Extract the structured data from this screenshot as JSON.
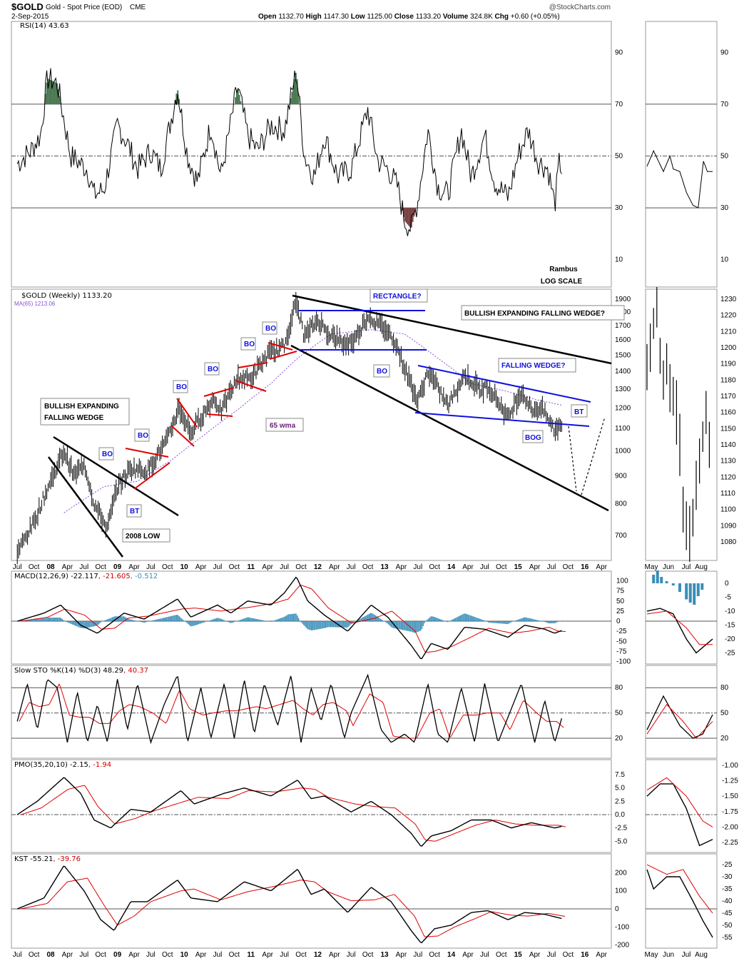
{
  "header": {
    "symbol": "$GOLD",
    "name": "Gold - Spot Price (EOD)",
    "exchange": "CME",
    "date": "2-Sep-2015",
    "copyright": "@StockCharts.com",
    "open_label": "Open",
    "open": "1132.70",
    "high_label": "High",
    "high": "1147.30",
    "low_label": "Low",
    "low": "1125.00",
    "close_label": "Close",
    "close": "1133.20",
    "volume_label": "Volume",
    "volume": "324.8K",
    "chg_label": "Chg",
    "chg": "+0.60 (+0.05%)"
  },
  "panels": {
    "rsi": {
      "label": "RSI(14) 43.63",
      "ticks": [
        90,
        70,
        50,
        30,
        10
      ],
      "note1": "Rambus",
      "note2": "LOG SCALE"
    },
    "price": {
      "label": "$GOLD (Weekly) 1133.20",
      "ma_label": "MA(65) 1213.06",
      "ticks": [
        1900,
        1800,
        1700,
        1600,
        1500,
        1400,
        1300,
        1200,
        1100,
        1000,
        900,
        800,
        700
      ],
      "mini_ticks": [
        1230,
        1220,
        1210,
        1200,
        1190,
        1180,
        1170,
        1160,
        1150,
        1140,
        1130,
        1120,
        1110,
        1100,
        1090,
        1080
      ]
    },
    "macd": {
      "label": "MACD(12,26,9) -22.117",
      "sig": ", -21.605",
      "hist": ", -0.512",
      "ticks": [
        100,
        75,
        50,
        25,
        0,
        -25,
        -50,
        -75,
        -100
      ],
      "mini_ticks": [
        0,
        -5,
        -10,
        -15,
        -20,
        -25
      ]
    },
    "sto": {
      "label": "Slow STO %K(14) %D(3) 48.29",
      "d": ", 40.37",
      "ticks": [
        80,
        50,
        20
      ]
    },
    "pmo": {
      "label": "PMO(35,20,10) -2.15",
      "sig": ", -1.94",
      "ticks": [
        "7.5",
        "5.0",
        "2.5",
        "0.0",
        "-2.5",
        "-5.0"
      ],
      "mini_ticks": [
        "-1.00",
        "-1.25",
        "-1.50",
        "-1.75",
        "-2.00",
        "-2.25"
      ]
    },
    "kst": {
      "label": "KST -55.21",
      "sig": ", -39.76",
      "ticks": [
        200,
        100,
        0,
        -100,
        -200
      ],
      "mini_ticks": [
        -25,
        -30,
        -35,
        -40,
        -45,
        -50,
        -55
      ]
    }
  },
  "annotations": {
    "wedge1": "BULLISH EXPANDING",
    "wedge2": "FALLING WEDGE",
    "low2008": "2008 LOW",
    "wma": "65 wma",
    "rect": "RECTANGLE?",
    "bewedge": "BULLISH EXPANDING FALLING WEDGE?",
    "fwedge": "FALLING WEDGE?",
    "bo": "BO",
    "bt": "BT",
    "bog": "BOG"
  },
  "colors": {
    "price": "#000000",
    "ma": "#8a4fd8",
    "signal": "#e00000",
    "hist": "#3a8db8",
    "trend": "#000000",
    "channel": "#1010e0",
    "pattern": "#e00000",
    "rsi_over": "#4d7a55",
    "rsi_under": "#7a4444"
  },
  "chart_data": {
    "type": "line",
    "x_axis_labels": [
      "Jul",
      "Oct",
      "08",
      "Apr",
      "Jul",
      "Oct",
      "09",
      "Apr",
      "Jul",
      "Oct",
      "10",
      "Apr",
      "Jul",
      "Oct",
      "11",
      "Apr",
      "Jul",
      "Oct",
      "12",
      "Apr",
      "Jul",
      "Oct",
      "13",
      "Apr",
      "Jul",
      "Oct",
      "14",
      "Apr",
      "Jul",
      "Oct",
      "15",
      "Apr",
      "Jul",
      "Oct",
      "16",
      "Apr"
    ],
    "mini_x_labels": [
      "May",
      "Jun",
      "Jul",
      "Aug"
    ],
    "price_scale": "log",
    "price_range": [
      620,
      1950
    ],
    "price": [
      [
        2007.5,
        650
      ],
      [
        2007.75,
        740
      ],
      [
        2008.0,
        880
      ],
      [
        2008.2,
        1000
      ],
      [
        2008.35,
        900
      ],
      [
        2008.5,
        950
      ],
      [
        2008.65,
        800
      ],
      [
        2008.85,
        720
      ],
      [
        2009.0,
        860
      ],
      [
        2009.2,
        930
      ],
      [
        2009.45,
        920
      ],
      [
        2009.75,
        1050
      ],
      [
        2009.92,
        1200
      ],
      [
        2010.1,
        1080
      ],
      [
        2010.45,
        1250
      ],
      [
        2010.55,
        1180
      ],
      [
        2010.8,
        1360
      ],
      [
        2011.0,
        1360
      ],
      [
        2011.25,
        1500
      ],
      [
        2011.5,
        1560
      ],
      [
        2011.68,
        1880
      ],
      [
        2011.8,
        1620
      ],
      [
        2012.0,
        1740
      ],
      [
        2012.15,
        1650
      ],
      [
        2012.4,
        1570
      ],
      [
        2012.55,
        1600
      ],
      [
        2012.75,
        1770
      ],
      [
        2013.0,
        1680
      ],
      [
        2013.15,
        1600
      ],
      [
        2013.3,
        1420
      ],
      [
        2013.5,
        1230
      ],
      [
        2013.65,
        1400
      ],
      [
        2013.95,
        1210
      ],
      [
        2014.2,
        1380
      ],
      [
        2014.45,
        1290
      ],
      [
        2014.55,
        1320
      ],
      [
        2014.85,
        1150
      ],
      [
        2015.05,
        1290
      ],
      [
        2015.2,
        1190
      ],
      [
        2015.35,
        1200
      ],
      [
        2015.55,
        1090
      ],
      [
        2015.67,
        1133
      ]
    ],
    "ma65": [
      [
        2008.2,
        770
      ],
      [
        2008.8,
        860
      ],
      [
        2009.3,
        880
      ],
      [
        2009.8,
        960
      ],
      [
        2010.3,
        1070
      ],
      [
        2010.8,
        1190
      ],
      [
        2011.3,
        1330
      ],
      [
        2011.7,
        1480
      ],
      [
        2012.2,
        1640
      ],
      [
        2012.8,
        1670
      ],
      [
        2013.3,
        1640
      ],
      [
        2013.8,
        1480
      ],
      [
        2014.3,
        1330
      ],
      [
        2014.8,
        1290
      ],
      [
        2015.3,
        1240
      ],
      [
        2015.67,
        1213
      ]
    ],
    "rsi": [
      [
        2007.5,
        47
      ],
      [
        2007.7,
        52
      ],
      [
        2007.85,
        58
      ],
      [
        2007.95,
        80
      ],
      [
        2008.1,
        78
      ],
      [
        2008.3,
        50
      ],
      [
        2008.55,
        45
      ],
      [
        2008.65,
        35
      ],
      [
        2008.8,
        37
      ],
      [
        2009.0,
        62
      ],
      [
        2009.15,
        55
      ],
      [
        2009.3,
        45
      ],
      [
        2009.5,
        52
      ],
      [
        2009.65,
        45
      ],
      [
        2009.9,
        76
      ],
      [
        2010.05,
        50
      ],
      [
        2010.2,
        40
      ],
      [
        2010.4,
        62
      ],
      [
        2010.55,
        42
      ],
      [
        2010.8,
        77
      ],
      [
        2010.95,
        58
      ],
      [
        2011.1,
        52
      ],
      [
        2011.3,
        62
      ],
      [
        2011.5,
        60
      ],
      [
        2011.68,
        83
      ],
      [
        2011.8,
        50
      ],
      [
        2011.95,
        42
      ],
      [
        2012.1,
        58
      ],
      [
        2012.3,
        42
      ],
      [
        2012.5,
        45
      ],
      [
        2012.75,
        68
      ],
      [
        2012.9,
        48
      ],
      [
        2013.05,
        45
      ],
      [
        2013.2,
        38
      ],
      [
        2013.3,
        25
      ],
      [
        2013.4,
        22
      ],
      [
        2013.5,
        33
      ],
      [
        2013.65,
        60
      ],
      [
        2013.8,
        38
      ],
      [
        2013.95,
        35
      ],
      [
        2014.15,
        60
      ],
      [
        2014.3,
        42
      ],
      [
        2014.5,
        58
      ],
      [
        2014.65,
        40
      ],
      [
        2014.85,
        34
      ],
      [
        2015.0,
        50
      ],
      [
        2015.15,
        60
      ],
      [
        2015.3,
        48
      ],
      [
        2015.45,
        45
      ],
      [
        2015.55,
        31
      ],
      [
        2015.62,
        48
      ],
      [
        2015.67,
        43.63
      ]
    ],
    "macd": [
      [
        2007.5,
        0
      ],
      [
        2007.9,
        20
      ],
      [
        2008.15,
        40
      ],
      [
        2008.45,
        -10
      ],
      [
        2008.7,
        -30
      ],
      [
        2008.9,
        -5
      ],
      [
        2009.1,
        20
      ],
      [
        2009.4,
        5
      ],
      [
        2009.9,
        55
      ],
      [
        2010.1,
        10
      ],
      [
        2010.5,
        40
      ],
      [
        2010.7,
        20
      ],
      [
        2010.95,
        50
      ],
      [
        2011.3,
        40
      ],
      [
        2011.5,
        70
      ],
      [
        2011.68,
        110
      ],
      [
        2011.85,
        50
      ],
      [
        2012.1,
        15
      ],
      [
        2012.45,
        -25
      ],
      [
        2012.8,
        40
      ],
      [
        2013.05,
        10
      ],
      [
        2013.4,
        -60
      ],
      [
        2013.55,
        -95
      ],
      [
        2013.7,
        -55
      ],
      [
        2013.95,
        -70
      ],
      [
        2014.2,
        -15
      ],
      [
        2014.5,
        -20
      ],
      [
        2014.85,
        -40
      ],
      [
        2015.1,
        -10
      ],
      [
        2015.4,
        -20
      ],
      [
        2015.55,
        -30
      ],
      [
        2015.67,
        -22
      ]
    ],
    "sto": [
      [
        2007.5,
        40
      ],
      [
        2007.65,
        85
      ],
      [
        2007.8,
        30
      ],
      [
        2007.95,
        90
      ],
      [
        2008.1,
        80
      ],
      [
        2008.25,
        15
      ],
      [
        2008.4,
        75
      ],
      [
        2008.55,
        15
      ],
      [
        2008.7,
        60
      ],
      [
        2008.85,
        15
      ],
      [
        2009.0,
        90
      ],
      [
        2009.15,
        30
      ],
      [
        2009.3,
        85
      ],
      [
        2009.5,
        15
      ],
      [
        2009.7,
        60
      ],
      [
        2009.9,
        95
      ],
      [
        2010.05,
        15
      ],
      [
        2010.25,
        80
      ],
      [
        2010.4,
        20
      ],
      [
        2010.6,
        85
      ],
      [
        2010.75,
        20
      ],
      [
        2010.9,
        90
      ],
      [
        2011.05,
        25
      ],
      [
        2011.2,
        85
      ],
      [
        2011.4,
        35
      ],
      [
        2011.6,
        95
      ],
      [
        2011.75,
        15
      ],
      [
        2011.9,
        80
      ],
      [
        2012.05,
        40
      ],
      [
        2012.2,
        85
      ],
      [
        2012.4,
        20
      ],
      [
        2012.5,
        50
      ],
      [
        2012.75,
        95
      ],
      [
        2012.95,
        30
      ],
      [
        2013.1,
        15
      ],
      [
        2013.3,
        25
      ],
      [
        2013.45,
        15
      ],
      [
        2013.65,
        85
      ],
      [
        2013.8,
        25
      ],
      [
        2013.95,
        15
      ],
      [
        2014.15,
        80
      ],
      [
        2014.35,
        15
      ],
      [
        2014.5,
        85
      ],
      [
        2014.7,
        15
      ],
      [
        2014.85,
        45
      ],
      [
        2015.05,
        85
      ],
      [
        2015.25,
        15
      ],
      [
        2015.4,
        65
      ],
      [
        2015.55,
        15
      ],
      [
        2015.67,
        48
      ]
    ],
    "pmo": [
      [
        2007.5,
        0
      ],
      [
        2007.8,
        2.5
      ],
      [
        2008.2,
        7
      ],
      [
        2008.45,
        4
      ],
      [
        2008.65,
        -1
      ],
      [
        2008.9,
        -2.5
      ],
      [
        2009.2,
        1
      ],
      [
        2009.5,
        0.5
      ],
      [
        2009.95,
        4.5
      ],
      [
        2010.15,
        2
      ],
      [
        2010.6,
        4
      ],
      [
        2010.9,
        5
      ],
      [
        2011.3,
        3.5
      ],
      [
        2011.7,
        6.5
      ],
      [
        2011.9,
        3
      ],
      [
        2012.1,
        3.5
      ],
      [
        2012.5,
        0.5
      ],
      [
        2012.8,
        2.5
      ],
      [
        2013.1,
        0
      ],
      [
        2013.4,
        -3.5
      ],
      [
        2013.55,
        -6
      ],
      [
        2013.7,
        -4
      ],
      [
        2014.0,
        -3
      ],
      [
        2014.3,
        -1
      ],
      [
        2014.6,
        -1
      ],
      [
        2014.9,
        -2.5
      ],
      [
        2015.2,
        -1.5
      ],
      [
        2015.55,
        -2.5
      ],
      [
        2015.67,
        -2.15
      ]
    ],
    "kst": [
      [
        2007.5,
        0
      ],
      [
        2007.9,
        60
      ],
      [
        2008.2,
        240
      ],
      [
        2008.5,
        100
      ],
      [
        2008.75,
        -60
      ],
      [
        2008.95,
        -120
      ],
      [
        2009.2,
        40
      ],
      [
        2009.45,
        40
      ],
      [
        2009.9,
        160
      ],
      [
        2010.1,
        60
      ],
      [
        2010.5,
        40
      ],
      [
        2010.9,
        150
      ],
      [
        2011.3,
        100
      ],
      [
        2011.7,
        220
      ],
      [
        2011.9,
        80
      ],
      [
        2012.1,
        110
      ],
      [
        2012.45,
        -20
      ],
      [
        2012.8,
        120
      ],
      [
        2013.1,
        40
      ],
      [
        2013.4,
        -120
      ],
      [
        2013.55,
        -190
      ],
      [
        2013.75,
        -110
      ],
      [
        2014.0,
        -90
      ],
      [
        2014.3,
        -20
      ],
      [
        2014.55,
        -10
      ],
      [
        2014.85,
        -60
      ],
      [
        2015.1,
        -20
      ],
      [
        2015.4,
        -30
      ],
      [
        2015.67,
        -55
      ]
    ],
    "mini_price": [
      [
        0,
        1188
      ],
      [
        0.05,
        1200
      ],
      [
        0.1,
        1215
      ],
      [
        0.15,
        1225
      ],
      [
        0.2,
        1195
      ],
      [
        0.25,
        1180
      ],
      [
        0.3,
        1190
      ],
      [
        0.35,
        1175
      ],
      [
        0.4,
        1170
      ],
      [
        0.45,
        1160
      ],
      [
        0.5,
        1140
      ],
      [
        0.55,
        1100
      ],
      [
        0.6,
        1090
      ],
      [
        0.65,
        1085
      ],
      [
        0.7,
        1095
      ],
      [
        0.75,
        1115
      ],
      [
        0.8,
        1130
      ],
      [
        0.85,
        1145
      ],
      [
        0.9,
        1160
      ],
      [
        0.95,
        1140
      ],
      [
        1.0,
        1133
      ]
    ],
    "mini_rsi": [
      [
        0,
        46
      ],
      [
        0.1,
        52
      ],
      [
        0.25,
        44
      ],
      [
        0.35,
        50
      ],
      [
        0.4,
        45
      ],
      [
        0.5,
        44
      ],
      [
        0.6,
        36
      ],
      [
        0.7,
        31
      ],
      [
        0.78,
        30
      ],
      [
        0.86,
        48
      ],
      [
        0.92,
        44
      ],
      [
        1.0,
        44
      ]
    ]
  }
}
